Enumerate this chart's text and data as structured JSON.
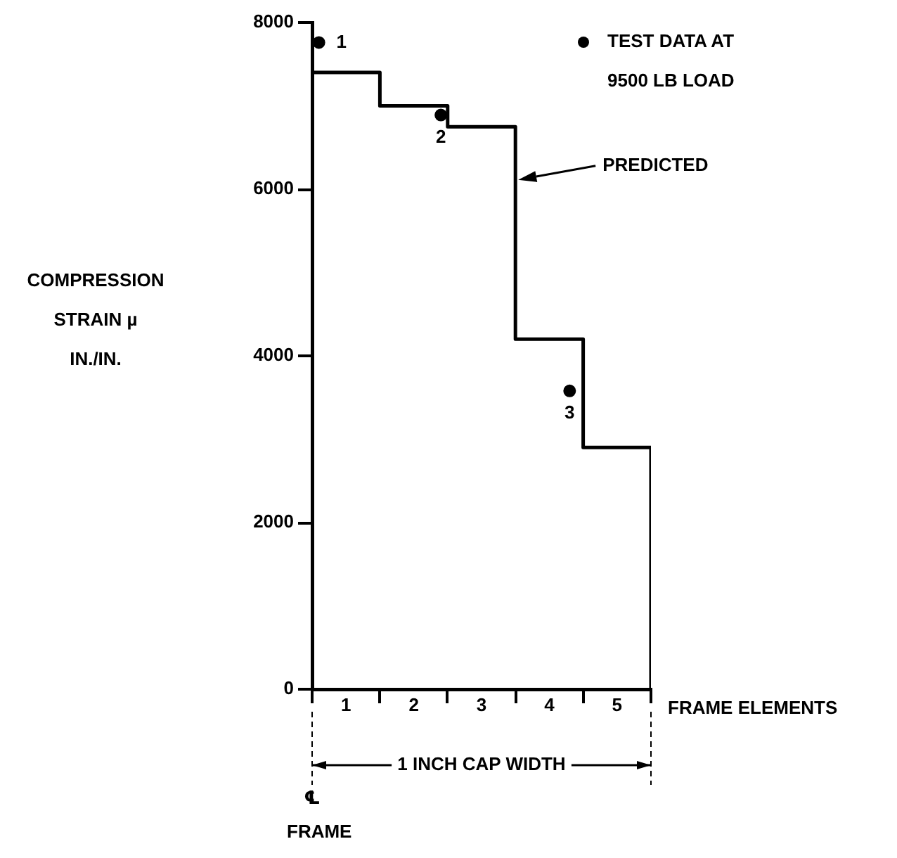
{
  "chart_data": {
    "type": "step",
    "xlabel": "FRAME ELEMENTS",
    "ylabel": "COMPRESSION STRAIN µ IN./IN.",
    "xlim": [
      0,
      5
    ],
    "xticks": [
      {
        "value": 0,
        "label": null
      },
      {
        "value": 0.5,
        "label": "1"
      },
      {
        "value": 1,
        "label": null
      },
      {
        "value": 1.5,
        "label": "2"
      },
      {
        "value": 2,
        "label": null
      },
      {
        "value": 2.5,
        "label": "3"
      },
      {
        "value": 3,
        "label": null
      },
      {
        "value": 3.5,
        "label": "4"
      },
      {
        "value": 4,
        "label": null
      },
      {
        "value": 4.5,
        "label": "5"
      },
      {
        "value": 5,
        "label": null
      }
    ],
    "ylim": [
      0,
      8000
    ],
    "yticks": [
      0,
      2000,
      4000,
      6000,
      8000
    ],
    "series": [
      {
        "color": "#000000",
        "x": [
          0,
          1,
          2,
          3,
          4,
          5,
          5
        ],
        "values": [
          7400,
          7000,
          6750,
          4200,
          2900,
          2900,
          0
        ]
      },
      {
        "type": "scatter",
        "name": "TEST DATA AT 9500 LB LOAD",
        "color": "#000000",
        "marker": "circle",
        "x": [
          0.1,
          1.9,
          3.8
        ],
        "values": [
          7760,
          6890,
          3580
        ]
      }
    ],
    "annotations": [
      "PREDICTED",
      "1 INCH CAP WIDTH",
      "℄ FRAME",
      {
        "text": "1",
        "x": 0.1,
        "y": 7760
      },
      {
        "text": "2",
        "x": 1.9,
        "y": 6890
      },
      {
        "text": "3",
        "x": 3.8,
        "y": 3580
      }
    ],
    "legend": "top right",
    "grid": false
  }
}
